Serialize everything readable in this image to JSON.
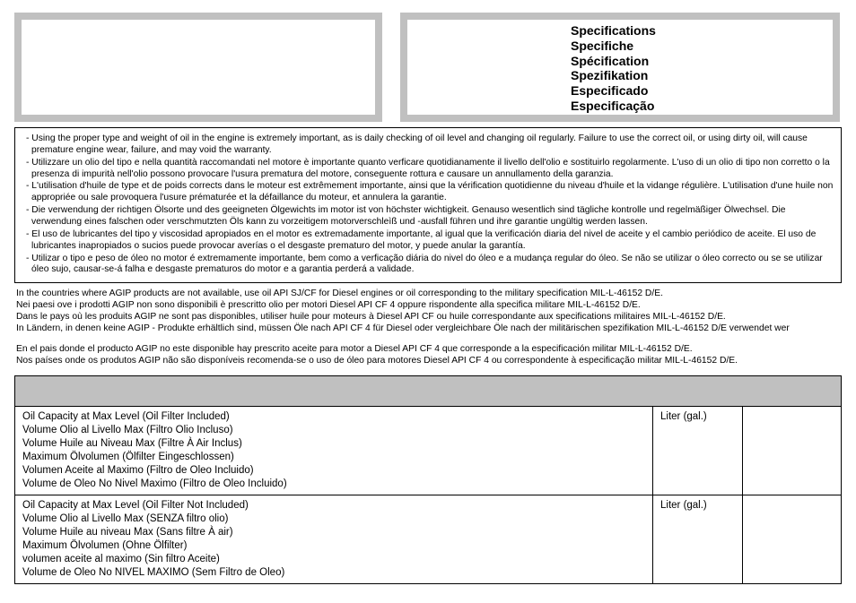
{
  "header": {
    "titles": [
      "Specifications",
      "Specifiche",
      "Spécification",
      "Spezifikation",
      "Especificado",
      "Especificação"
    ]
  },
  "warnings": [
    "Using the proper type and weight of oil in the engine is extremely important, as is daily checking of oil level and changing oil regularly. Failure to use the correct oil, or using dirty oil, will cause premature engine wear, failure, and may void the warranty.",
    "Utilizzare un olio del tipo e nella quantità raccomandati nel motore è importante quanto verficare quotidianamente il livello dell'olio e sostituirlo regolarmente. L'uso di un olio di tipo non corretto o la presenza di impurità nell'olio possono provocare l'usura prematura del motore, conseguente rottura e causare un annullamento della garanzia.",
    "L'utilisation d'huile de type et de poids corrects dans le moteur est extrêmement importante, ainsi que la vérification quotidienne du niveau d'huile et la vidange régulière. L'utilisation d'une huile non appropriée ou sale provoquera l'usure prématurée et la défaillance du moteur, et annulera la garantie.",
    "Die verwendung der richtigen Ölsorte und des geeigneten Ölgewichts im motor ist von höchster wichtigkeit. Genauso wesentlich sind tägliche kontrolle und regelmäßiger Ölwechsel. Die verwendung eines falschen oder verschmutzten Öls kann zu vorzeitigem motorverschleìß und -ausfall führen und ihre garantie ungültig werden lassen.",
    "El uso de lubricantes del tipo y viscosidad apropiados en el motor es extremadamente importante, al igual que la verificación diaria del nivel de aceite y el cambio periódico de aceite. El uso de lubricantes inapropiados o sucios puede provocar averías o el desgaste prematuro del motor, y puede anular la garantía.",
    "Utilizar o tipo e peso de óleo no motor é extremamente importante, bem como a verficação diária do nivel do óleo e a mudança regular do óleo. Se não se utilizar o óleo correcto ou se se utilizar óleo sujo, causar-se-á falha e desgaste prematuros do motor e a garantia perderá a validade."
  ],
  "follow1": [
    "In the countries where AGIP products are not available, use oil API SJ/CF for Diesel engines or oil corresponding to the military specification MIL-L-46152 D/E.",
    "Nei paesi ove i prodotti AGIP non sono disponibili è prescritto olio per motori Diesel API CF 4 oppure rispondente alla specifica militare MIL-L-46152 D/E.",
    "Dans le pays où les produits AGIP ne sont pas disponibles, utiliser huile pour moteurs à Diesel API CF ou huile correspondante aux specifications militaires MIL-L-46152 D/E.",
    "In Ländern, in denen keine AGIP - Produkte erhältlich sind, müssen Öle nach API CF 4 für Diesel oder vergleichbare Öle nach der militärischen spezifikation MIL-L-46152 D/E verwendet wer"
  ],
  "follow2": [
    "En el pais donde el producto AGIP no este disponible hay prescrito aceite para motor a Diesel API CF 4 que corresponde a la especificación militar MIL-L-46152 D/E.",
    "Nos países onde os produtos AGIP não são disponíveis recomenda-se o uso de óleo para motores Diesel API CF 4 ou correspondente à especificação militar MIL-L-46152 D/E."
  ],
  "table": {
    "rows": [
      {
        "labels": [
          "Oil Capacity at Max Level (Oil Filter Included)",
          "Volume Olio al Livello Max (Filtro Olio Incluso)",
          "Volume Huile au Niveau Max (Filtre À Air Inclus)",
          "Maximum Ölvolumen (Ölfilter Eingeschlossen)",
          "Volumen Aceite al Maximo (Filtro de Oleo Incluido)",
          "Volume de Oleo No Nivel Maximo (Filtro de Oleo Incluido)"
        ],
        "unit": "Liter (gal.)",
        "value": ""
      },
      {
        "labels": [
          "Oil Capacity at Max Level (Oil Filter Not Included)",
          "Volume Olio al Livello Max (SENZA filtro olio)",
          "Volume Huile au niveau Max (Sans filtre À air)",
          "Maximum Ölvolumen (Ohne Ölfilter)",
          "volumen aceite al maximo (Sin filtro Aceite)",
          "Volume de Oleo No NIVEL MAXIMO (Sem Filtro de Oleo)"
        ],
        "unit": "Liter (gal.)",
        "value": ""
      }
    ]
  },
  "style": {
    "border_grey": "#c0c0c0",
    "text_color": "#000000",
    "font_body_pt": 10.3,
    "font_title_pt": 14,
    "font_table_pt": 11.5
  }
}
